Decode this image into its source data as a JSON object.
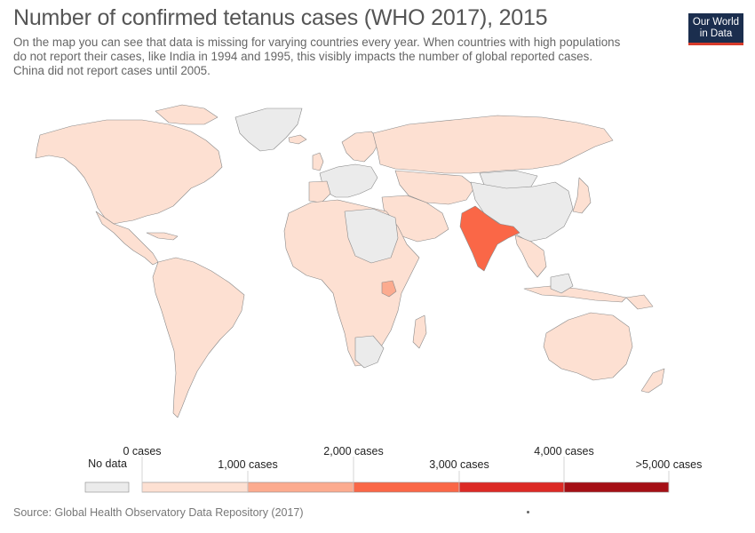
{
  "title": "Number of confirmed tetanus cases (WHO 2017), 2015",
  "subtitle_lines": [
    "On the map you can see that data is missing for varying countries every year. When countries with high populations",
    "do not report their cases, like India in 1994 and 1995, this visibly impacts the number of global reported cases.",
    "China did not report cases until 2005."
  ],
  "logo": {
    "line1": "Our World",
    "line2": "in Data"
  },
  "colors": {
    "no_data": "#ebebeb",
    "bin1": "#fde0d2",
    "bin2": "#fcab8f",
    "bin3": "#fa6747",
    "bin4": "#dc2a25",
    "bin5": "#a50f15",
    "border": "#8a8a8a"
  },
  "legend": {
    "no_data_label": "No data",
    "labels_upper": [
      "0 cases",
      "2,000 cases",
      "4,000 cases"
    ],
    "labels_lower": [
      "1,000 cases",
      "3,000 cases",
      ">5,000 cases"
    ]
  },
  "highlighted": [
    {
      "country": "India",
      "bin": "bin3"
    },
    {
      "country": "Uganda",
      "bin": "bin2"
    }
  ],
  "source": "Source: Global Health Observatory Data Repository (2017)"
}
